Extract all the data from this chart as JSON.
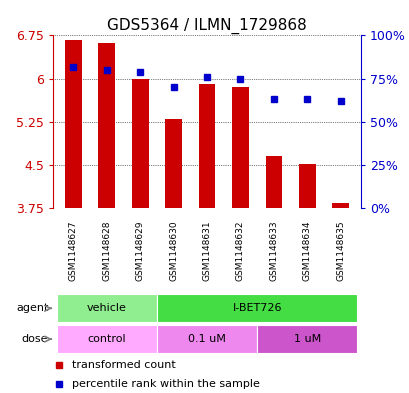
{
  "title": "GDS5364 / ILMN_1729868",
  "samples": [
    "GSM1148627",
    "GSM1148628",
    "GSM1148629",
    "GSM1148630",
    "GSM1148631",
    "GSM1148632",
    "GSM1148633",
    "GSM1148634",
    "GSM1148635"
  ],
  "transformed_count": [
    6.67,
    6.62,
    6.0,
    5.3,
    5.9,
    5.85,
    4.65,
    4.52,
    3.85
  ],
  "percentile_rank": [
    82,
    80,
    79,
    70,
    76,
    75,
    63,
    63,
    62
  ],
  "ylim": [
    3.75,
    6.75
  ],
  "yticks": [
    3.75,
    4.5,
    5.25,
    6.0,
    6.75
  ],
  "ytick_labels": [
    "3.75",
    "4.5",
    "5.25",
    "6",
    "6.75"
  ],
  "right_yticks": [
    0,
    25,
    50,
    75,
    100
  ],
  "right_ytick_labels": [
    "0%",
    "25%",
    "50%",
    "75%",
    "100%"
  ],
  "bar_color": "#cc0000",
  "dot_color": "#0000cc",
  "left_axis_color": "#cc0000",
  "right_axis_color": "#0000cc",
  "agent_groups": [
    {
      "label": "vehicle",
      "start": 0,
      "end": 3,
      "color": "#90ee90"
    },
    {
      "label": "I-BET726",
      "start": 3,
      "end": 9,
      "color": "#44dd44"
    }
  ],
  "dose_groups": [
    {
      "label": "control",
      "start": 0,
      "end": 3,
      "color": "#ffaaff"
    },
    {
      "label": "0.1 uM",
      "start": 3,
      "end": 6,
      "color": "#ee88ee"
    },
    {
      "label": "1 uM",
      "start": 6,
      "end": 9,
      "color": "#cc55cc"
    }
  ],
  "legend_items": [
    {
      "label": "transformed count",
      "color": "#cc0000"
    },
    {
      "label": "percentile rank within the sample",
      "color": "#0000cc"
    }
  ],
  "background_color": "#f0f0f0"
}
